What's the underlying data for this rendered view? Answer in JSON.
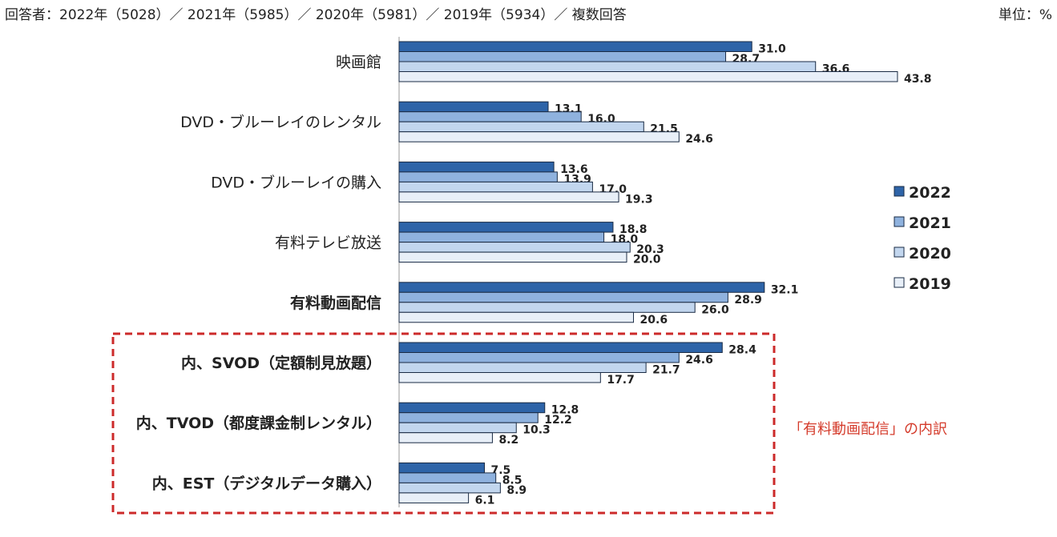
{
  "header": {
    "respondents": "回答者：2022年（5028）／ 2021年（5985）／ 2020年（5981）／ 2019年（5934）／ 複数回答",
    "unit": "単位：%"
  },
  "annotation": "「有料動画配信」の内訳",
  "colors": {
    "2022": "#2e64a8",
    "2021": "#8fb2de",
    "2020": "#c2d6ee",
    "2019": "#e8eff8",
    "border": "#1a2b44",
    "highlight_box": "#cc2a2a"
  },
  "chart_data": {
    "type": "bar",
    "orientation": "horizontal",
    "title": "",
    "xlabel": "",
    "ylabel": "",
    "xlim": [
      0,
      45
    ],
    "legend_position": "right",
    "categories": [
      "映画館",
      "DVD・ブルーレイのレンタル",
      "DVD・ブルーレイの購入",
      "有料テレビ放送",
      "有料動画配信",
      "内、SVOD（定額制見放題）",
      "内、TVOD（都度課金制レンタル）",
      "内、EST（デジタルデータ購入）"
    ],
    "bold_categories": [
      4,
      5,
      6,
      7
    ],
    "highlighted_categories": [
      5,
      6,
      7
    ],
    "series": [
      {
        "name": "2022",
        "values": [
          31.0,
          13.1,
          13.6,
          18.8,
          32.1,
          28.4,
          12.8,
          7.5
        ],
        "labels": [
          "31.0",
          "13.1",
          "13.6",
          "18.8",
          "32.1",
          "28.4",
          "12.8",
          "7.5"
        ]
      },
      {
        "name": "2021",
        "values": [
          28.7,
          16.0,
          13.9,
          18.0,
          28.9,
          24.6,
          12.2,
          8.5
        ],
        "labels": [
          "28.7",
          "16.0",
          "13.9",
          "18.0",
          "28.9",
          "24.6",
          "12.2",
          "8.5"
        ]
      },
      {
        "name": "2020",
        "values": [
          36.6,
          21.5,
          17.0,
          20.3,
          26.0,
          21.7,
          10.3,
          8.9
        ],
        "labels": [
          "36.6",
          "21.5",
          "17.0",
          "20.3",
          "26.0",
          "21.7",
          "10.3",
          "8.9"
        ]
      },
      {
        "name": "2019",
        "values": [
          43.8,
          24.6,
          19.3,
          20.0,
          20.6,
          17.7,
          8.2,
          6.1
        ],
        "labels": [
          "43.8",
          "24.6",
          "19.3",
          "20.0",
          "20.6",
          "17.7",
          "8.2",
          "6.1"
        ]
      }
    ]
  }
}
